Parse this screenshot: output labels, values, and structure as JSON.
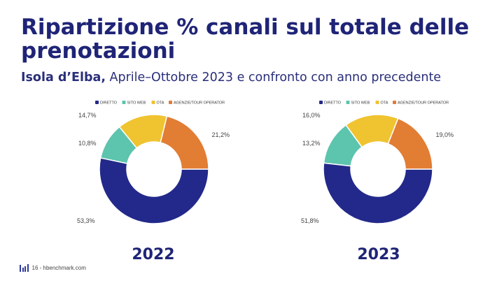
{
  "page": {
    "title": "Ripartizione % canali sul totale delle prenotazioni",
    "subtitle_bold": "Isola d’Elba,",
    "subtitle_rest": " Aprile–Ottobre 2023 e confronto con anno precedente",
    "footer_text": "16 - hbenchmark.com"
  },
  "colors": {
    "DIRETTO": "#23298a",
    "SITO WEB": "#5dc4ad",
    "OTA": "#f0c330",
    "AGENZIE/TOUR OPERATOR": "#e27d34"
  },
  "chart_data": [
    {
      "type": "pie",
      "title": "2022",
      "categories": [
        "DIRETTO",
        "SITO WEB",
        "OTA",
        "AGENZIE/TOUR OPERATOR"
      ],
      "values": [
        53.3,
        10.8,
        14.7,
        21.2
      ],
      "labels": [
        "53,3%",
        "10,8%",
        "14,7%",
        "21,2%"
      ],
      "legend": "top"
    },
    {
      "type": "pie",
      "title": "2023",
      "categories": [
        "DIRETTO",
        "SITO WEB",
        "OTA",
        "AGENZIE/TOUR OPERATOR"
      ],
      "values": [
        51.8,
        13.2,
        16.0,
        19.0
      ],
      "labels": [
        "51,8%",
        "13,2%",
        "16,0%",
        "19,0%"
      ],
      "legend": "top"
    }
  ]
}
